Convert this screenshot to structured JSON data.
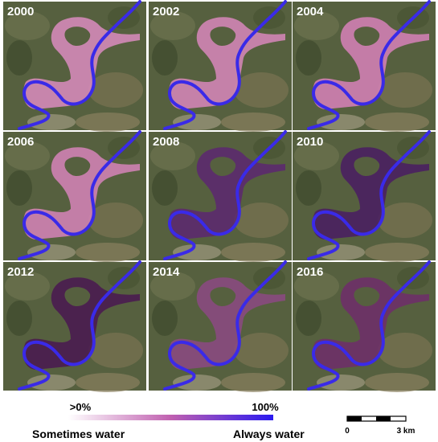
{
  "panels": [
    {
      "year": "2000"
    },
    {
      "year": "2002"
    },
    {
      "year": "2004"
    },
    {
      "year": "2006"
    },
    {
      "year": "2008"
    },
    {
      "year": "2010"
    },
    {
      "year": "2012"
    },
    {
      "year": "2014"
    },
    {
      "year": "2016"
    }
  ],
  "legend": {
    "min_label": ">0%",
    "max_label": "100%",
    "left_caption": "Sometimes water",
    "right_caption": "Always water"
  },
  "scale_bar": {
    "start": "0",
    "end": "3 km"
  }
}
